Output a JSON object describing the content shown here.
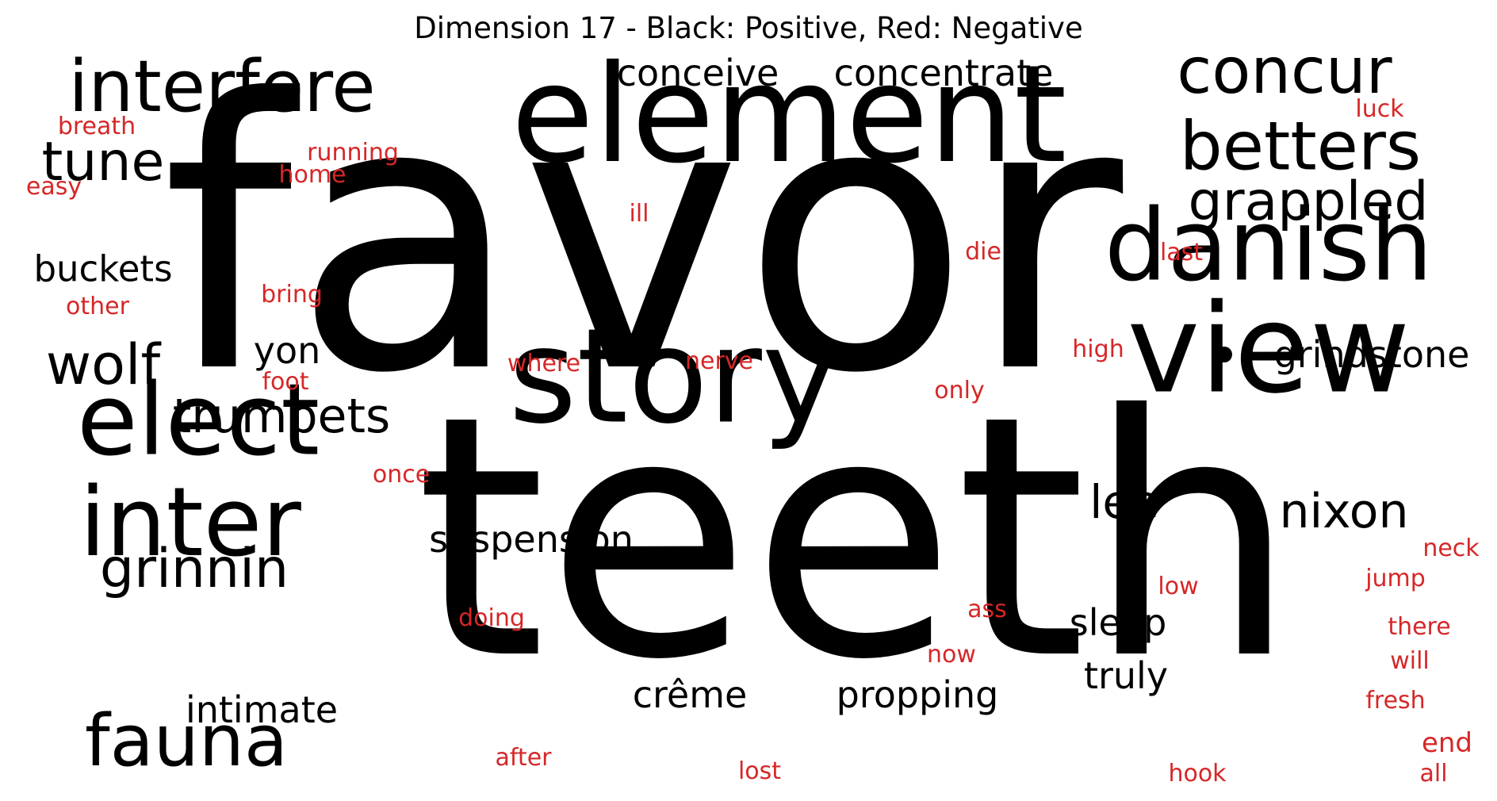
{
  "title": "Dimension 17 - Black: Positive, Red: Negative",
  "colors": {
    "positive": "#000000",
    "negative": "#d62728"
  },
  "positive_words": [
    "favor",
    "teeth",
    "element",
    "story",
    "view",
    "danish",
    "elect",
    "inter",
    "interfere",
    "concur",
    "betters",
    "grappled",
    "fauna",
    "wolf",
    "tune",
    "grinnin",
    "trumpets",
    "nixon",
    "lee",
    "buckets",
    "conceive",
    "concentrate",
    "grindstone",
    "suspension",
    "propping",
    "yon",
    "sleep",
    "truly",
    "crême",
    "intimate"
  ],
  "negative_words": [
    "breath",
    "running",
    "home",
    "easy",
    "ill",
    "die",
    "last",
    "luck",
    "other",
    "bring",
    "high",
    "where",
    "nerve",
    "foot",
    "only",
    "once",
    "neck",
    "low",
    "jump",
    "ass",
    "doing",
    "there",
    "now",
    "will",
    "fresh",
    "end",
    "after",
    "lost",
    "hook",
    "all"
  ]
}
